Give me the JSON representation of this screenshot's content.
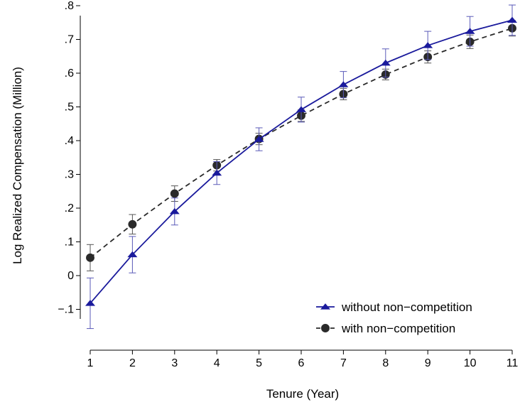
{
  "chart_data": {
    "type": "line",
    "xlabel": "Tenure (Year)",
    "ylabel": "Log Realized Compensation (Million)",
    "xlim": [
      1,
      11
    ],
    "ylim": [
      -0.2,
      0.8
    ],
    "x_ticks": [
      "1",
      "2",
      "3",
      "4",
      "5",
      "6",
      "7",
      "8",
      "9",
      "10",
      "11"
    ],
    "y_ticks": [
      {
        "value": 0.8,
        "label": ".8"
      },
      {
        "value": 0.7,
        "label": ".7"
      },
      {
        "value": 0.6,
        "label": ".6"
      },
      {
        "value": 0.5,
        "label": ".5"
      },
      {
        "value": 0.4,
        "label": ".4"
      },
      {
        "value": 0.3,
        "label": ".3"
      },
      {
        "value": 0.2,
        "label": ".2"
      },
      {
        "value": 0.1,
        "label": ".1"
      },
      {
        "value": 0.0,
        "label": "0"
      },
      {
        "value": -0.1,
        "label": "−.1"
      }
    ],
    "grid": false,
    "legend_position": "bottom-right",
    "x": [
      1,
      2,
      3,
      4,
      5,
      6,
      7,
      8,
      9,
      10,
      11
    ],
    "series": [
      {
        "name": "without non−competition",
        "color": "#1a1a9c",
        "marker": "triangle",
        "line_style": "solid",
        "values": [
          -0.082,
          0.062,
          0.19,
          0.304,
          0.404,
          0.492,
          0.566,
          0.63,
          0.682,
          0.724,
          0.757
        ],
        "ci_low": [
          -0.157,
          0.008,
          0.15,
          0.27,
          0.37,
          0.455,
          0.527,
          0.588,
          0.64,
          0.68,
          0.712
        ],
        "ci_high": [
          -0.007,
          0.116,
          0.23,
          0.338,
          0.438,
          0.529,
          0.605,
          0.672,
          0.724,
          0.768,
          0.802
        ]
      },
      {
        "name": "with non−competition",
        "color": "#2a2a2a",
        "marker": "circle",
        "line_style": "dashed",
        "values": [
          0.053,
          0.152,
          0.243,
          0.327,
          0.405,
          0.474,
          0.538,
          0.596,
          0.648,
          0.693,
          0.733
        ],
        "ci_low": [
          0.014,
          0.123,
          0.22,
          0.31,
          0.388,
          0.457,
          0.521,
          0.58,
          0.63,
          0.673,
          0.71
        ],
        "ci_high": [
          0.092,
          0.181,
          0.266,
          0.344,
          0.422,
          0.491,
          0.555,
          0.612,
          0.666,
          0.713,
          0.756
        ]
      }
    ]
  }
}
